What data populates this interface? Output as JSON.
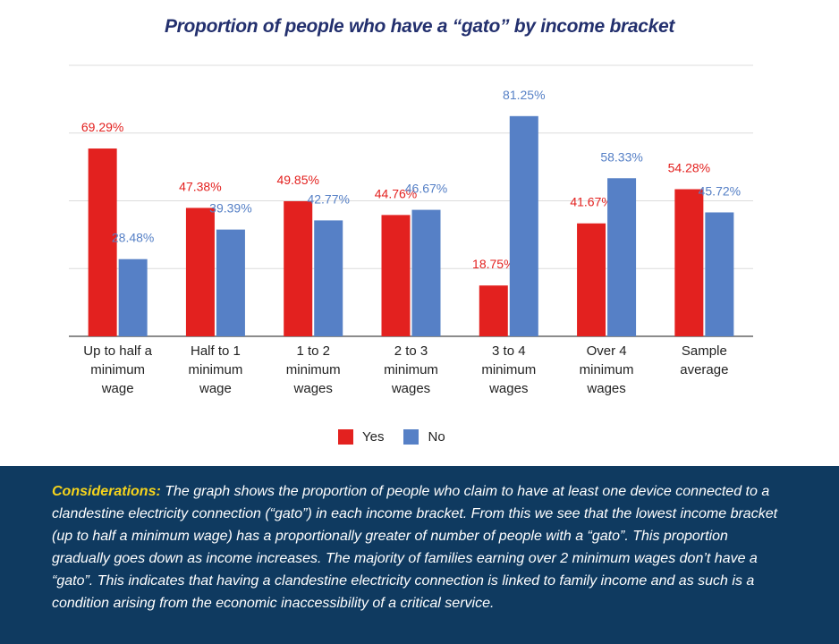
{
  "chart_data": {
    "type": "bar",
    "title": "Proportion of people who have a “gato” by income bracket",
    "categories": [
      [
        "Up to half a",
        "minimum",
        "wage"
      ],
      [
        "Half to 1",
        "minimum",
        "wage"
      ],
      [
        "1 to 2",
        "minimum",
        "wages"
      ],
      [
        "2 to 3",
        "minimum",
        "wages"
      ],
      [
        "3 to 4",
        "minimum",
        "wages"
      ],
      [
        "Over 4",
        "minimum",
        "wages"
      ],
      [
        "Sample",
        "average"
      ]
    ],
    "series": [
      {
        "name": "Yes",
        "color": "#e3211f",
        "values": [
          69.29,
          47.38,
          49.85,
          44.76,
          18.75,
          41.67,
          54.28
        ],
        "labels": [
          "69.29%",
          "47.38%",
          "49.85%",
          "44.76%",
          "18.75%",
          "41.67%",
          "54.28%"
        ]
      },
      {
        "name": "No",
        "color": "#5680c6",
        "values": [
          28.48,
          39.39,
          42.77,
          46.67,
          81.25,
          58.33,
          45.72
        ],
        "labels": [
          "28.48%",
          "39.39%",
          "42.77%",
          "46.67%",
          "81.25%",
          "58.33%",
          "45.72%"
        ]
      }
    ],
    "ylim": [
      0,
      100
    ],
    "grid": true,
    "legend": "bottom"
  },
  "considerations": {
    "lead": "Considerations:",
    "text": " The graph shows the proportion of people who claim to have at least one device connected to a clandestine electricity connection (“gato”) in each income bracket. From this we see that the lowest income bracket (up to half a minimum wage) has a proportionally greater of number of people with a “gato”. This proportion gradually goes down as income increases. The majority of families earning over 2 minimum wages don’t have a “gato”. This indicates that having a clandestine electricity connection is linked to family income and as such is a condition arising from the economic inaccessibility of a critical service."
  }
}
